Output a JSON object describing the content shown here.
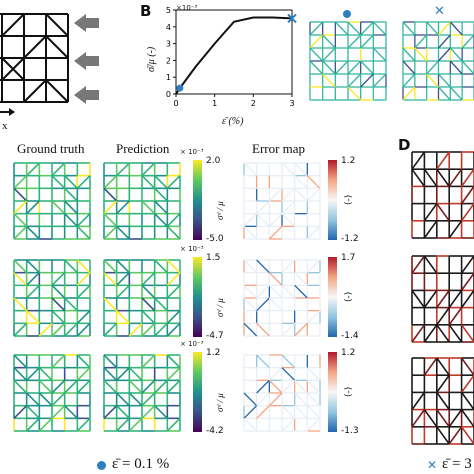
{
  "panel_labels": {
    "b": "B",
    "d": "D"
  },
  "panel_a": {
    "axis_label": "x"
  },
  "panel_b": {
    "scale_note": "×10⁻³",
    "y_ticks": [
      "5",
      "4",
      "3",
      "2",
      "1",
      "0"
    ],
    "x_ticks": [
      "0",
      "1",
      "2",
      "3"
    ],
    "ylabel": "σ̄/μ (-)",
    "xlabel": "ε̄ (%)"
  },
  "chart_data": {
    "type": "line",
    "xlabel": "ε̄ (%)",
    "ylabel": "σ̄/μ (-)",
    "xlim": [
      0,
      3
    ],
    "ylim": [
      0,
      5
    ],
    "y_scale": "×10^-3",
    "x": [
      0,
      0.1,
      0.5,
      1.0,
      1.5,
      2.0,
      2.5,
      3.0
    ],
    "y": [
      0.0,
      0.35,
      1.6,
      3.0,
      4.3,
      4.55,
      4.55,
      4.5
    ],
    "markers": [
      {
        "x": 0.1,
        "y": 0.35,
        "symbol": "circle",
        "color": "#2f7fc1"
      },
      {
        "x": 3.0,
        "y": 4.5,
        "symbol": "x",
        "color": "#2f7fc1"
      }
    ]
  },
  "columns": {
    "truth": "Ground truth",
    "prediction": "Prediction",
    "error": "Error map"
  },
  "rows": [
    {
      "cb_scale": "× 10⁻³",
      "cb_max": "2.0",
      "cb_min": "-5.0",
      "err_max": "1.2",
      "err_min": "-1.2"
    },
    {
      "cb_scale": "× 10⁻³",
      "cb_max": "1.5",
      "cb_min": "-4.7",
      "err_max": "1.7",
      "err_min": "-1.4"
    },
    {
      "cb_scale": "× 10⁻³",
      "cb_max": "1.2",
      "cb_min": "-4.2",
      "err_max": "1.2",
      "err_min": "-1.3"
    }
  ],
  "colorbar_label": "σᵈ / μ",
  "error_label": "(-)",
  "footer": {
    "left": "ε̄ = 0.1 %",
    "right": "ε̄ = 3"
  },
  "colors": {
    "viridis_top": "#fde725",
    "viridis_bottom": "#440154",
    "err_top": "#b2182b",
    "err_bottom": "#2166ac",
    "marker": "#2f7fc1"
  }
}
